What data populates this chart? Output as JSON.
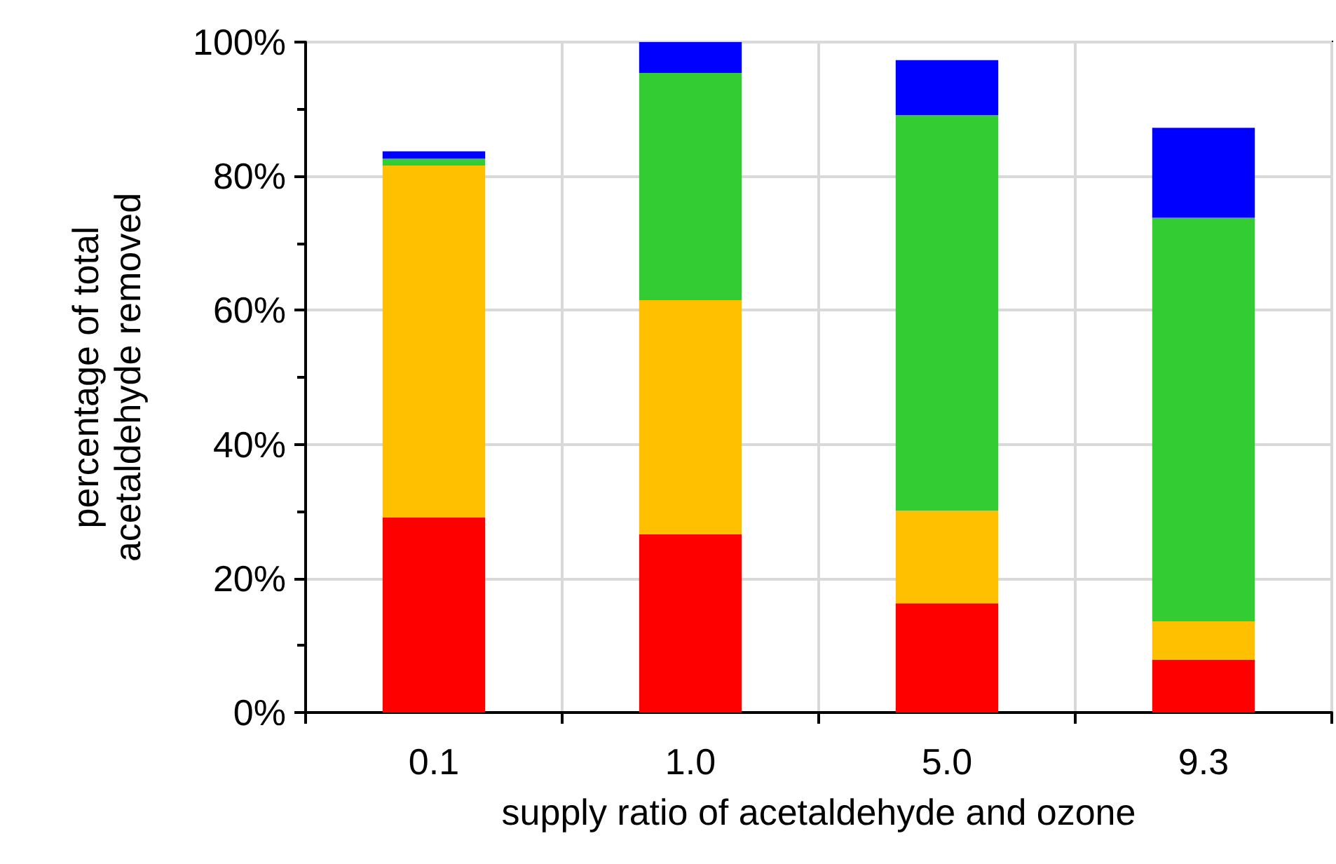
{
  "chart_data": {
    "type": "bar",
    "stacked": true,
    "xlabel": "supply ratio of acetaldehyde and ozone",
    "ylabel": "percentage of total\nacetaldehyde removed",
    "categories": [
      "0.1",
      "1.0",
      "5.0",
      "9.3"
    ],
    "series": [
      {
        "color": "#ff0000",
        "values": [
          29.1,
          26.6,
          16.3,
          7.9
        ]
      },
      {
        "color": "#ffc000",
        "values": [
          52.5,
          34.9,
          13.8,
          5.7
        ]
      },
      {
        "color": "#33cc33",
        "values": [
          1.0,
          33.9,
          59.0,
          60.2
        ]
      },
      {
        "color": "#0000ff",
        "values": [
          1.1,
          4.6,
          8.2,
          13.4
        ]
      }
    ],
    "ylim": [
      0,
      100
    ],
    "yticks": [
      {
        "value": 0,
        "label": "0%"
      },
      {
        "value": 20,
        "label": "20%"
      },
      {
        "value": 40,
        "label": "40%"
      },
      {
        "value": 60,
        "label": "60%"
      },
      {
        "value": 80,
        "label": "80%"
      },
      {
        "value": 100,
        "label": "100%"
      }
    ],
    "grid": true
  }
}
